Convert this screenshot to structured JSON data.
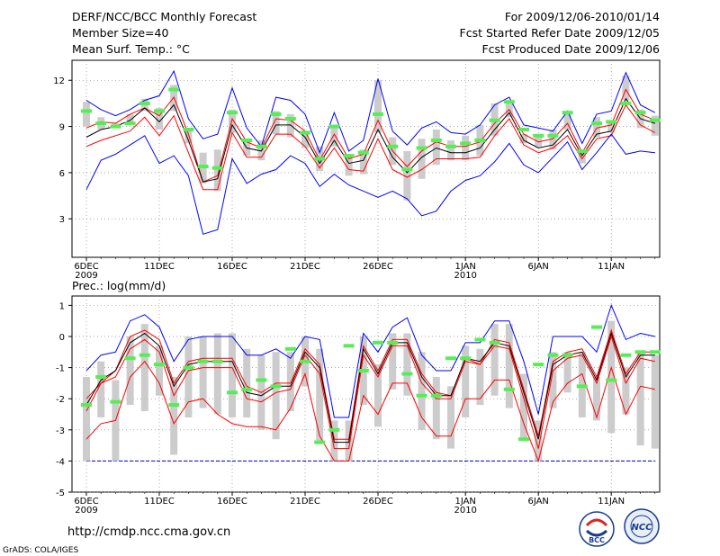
{
  "header": {
    "title": "DERF/NCC/BCC Monthly Forecast",
    "member_size": "Member Size=40",
    "variable": "Mean Surf. Temp.: °C",
    "period": "For 2009/12/06-2010/01/14",
    "start_date": "Fcst Started Refer Date 2009/12/05",
    "produced_date": "Fcst Produced Date 2009/12/06"
  },
  "footer": {
    "url": "http://cmdp.ncc.cma.gov.cn",
    "credit": "GrADS: COLA/IGES",
    "logo_left_text": "BCC",
    "logo_right_text": "NCC"
  },
  "colors": {
    "box": "#cccccc",
    "mean": "#000000",
    "ensemble_high": "#0000ff",
    "ensemble_low_band": "#ff0000",
    "climo": "#55ee55",
    "threshold": "#0000cc"
  },
  "chart_data": [
    {
      "type": "line",
      "title": "Mean Surf. Temp.: °C",
      "x_tick_labels": [
        "6DEC",
        "11DEC",
        "16DEC",
        "21DEC",
        "26DEC",
        "1JAN",
        "6JAN",
        "11JAN"
      ],
      "x_tick_days": [
        1,
        6,
        11,
        16,
        21,
        27,
        32,
        37
      ],
      "x_year_labels": [
        {
          "day": 1,
          "label": "2009"
        },
        {
          "day": 27,
          "label": "2010"
        }
      ],
      "ylim": [
        0.5,
        13.3
      ],
      "y_ticks": [
        3,
        6,
        9,
        12
      ],
      "days": [
        1,
        2,
        3,
        4,
        5,
        6,
        7,
        8,
        9,
        10,
        11,
        12,
        13,
        14,
        15,
        16,
        17,
        18,
        19,
        20,
        21,
        22,
        23,
        24,
        25,
        26,
        27,
        28,
        29,
        30,
        31,
        32,
        33,
        34,
        35,
        36,
        37,
        38,
        39,
        40
      ],
      "series": [
        {
          "name": "ensemble max",
          "color": "#0000ff",
          "values": [
            10.7,
            10.1,
            9.7,
            10.1,
            10.7,
            11,
            12.6,
            9.5,
            8.2,
            8.5,
            11.5,
            8.9,
            7.7,
            10.9,
            10.7,
            9.8,
            7.3,
            9.9,
            7.4,
            8.1,
            12.1,
            8.7,
            7.8,
            8.9,
            9.3,
            8.6,
            8.5,
            9.1,
            10.4,
            10.9,
            9.1,
            8.9,
            8.7,
            10,
            7.9,
            9.8,
            10,
            12.5,
            10.4,
            9.9
          ]
        },
        {
          "name": "upper band",
          "color": "#ff0000",
          "values": [
            8.9,
            9.3,
            9.2,
            9.8,
            10.2,
            9.7,
            10.9,
            8.5,
            5.4,
            5.8,
            9.5,
            8,
            7.6,
            9.5,
            9.4,
            8.7,
            6.8,
            8.5,
            6.9,
            7.2,
            9.4,
            7.4,
            6.4,
            7.4,
            8,
            7.7,
            7.7,
            8,
            9.2,
            10.1,
            8.5,
            8,
            8.2,
            9.2,
            7.3,
            8.9,
            9.1,
            11.4,
            9.8,
            9.4
          ]
        },
        {
          "name": "ensemble mean",
          "color": "#000000",
          "values": [
            8.3,
            8.8,
            9,
            9.4,
            10.2,
            9.3,
            10.4,
            8.1,
            5.4,
            5.6,
            9.1,
            7.6,
            7.4,
            9.1,
            9.1,
            8.3,
            6.6,
            8.1,
            6.6,
            6.8,
            8.8,
            7,
            6,
            7,
            7.6,
            7.3,
            7.3,
            7.6,
            8.8,
            9.9,
            8.1,
            7.6,
            7.8,
            8.8,
            7.1,
            8.5,
            8.7,
            10.8,
            9.5,
            9.2
          ]
        },
        {
          "name": "lower band",
          "color": "#ff0000",
          "values": [
            7.7,
            8.1,
            8.4,
            8.7,
            9.6,
            8.4,
            9.7,
            7.3,
            4.9,
            4.9,
            8.6,
            7,
            7,
            8.5,
            8.5,
            7.7,
            6.3,
            7.6,
            6.2,
            6.1,
            8.2,
            6.2,
            5.7,
            6.2,
            6.9,
            6.9,
            6.9,
            7,
            8.4,
            9.5,
            7.8,
            7.3,
            7.6,
            8.4,
            6.9,
            8.2,
            8.4,
            10.4,
            9.1,
            8.6
          ]
        },
        {
          "name": "ensemble min",
          "color": "#0000ff",
          "values": [
            4.9,
            6.8,
            7.2,
            7.8,
            8.4,
            6.6,
            7.1,
            5.8,
            2,
            2.3,
            6.9,
            5.3,
            5.9,
            6.2,
            7.1,
            6.6,
            5.1,
            5.9,
            5.2,
            4.8,
            4.4,
            4.8,
            4.3,
            3.2,
            3.5,
            4.8,
            5.5,
            5.8,
            6.7,
            7.9,
            6.5,
            6,
            7,
            8,
            6.2,
            7.3,
            8.5,
            7.2,
            7.4,
            7.3
          ]
        }
      ],
      "boxes": {
        "low": [
          9,
          8.8,
          9,
          9.2,
          10,
          8.8,
          10,
          7.9,
          5.3,
          4.8,
          8.6,
          7.1,
          6.8,
          8.5,
          8.3,
          7.6,
          6.1,
          7.7,
          5.8,
          5.9,
          8.6,
          6.5,
          4.2,
          5.6,
          6.5,
          6.8,
          6.8,
          7.1,
          8.4,
          9.6,
          7.9,
          7.7,
          7.5,
          8.8,
          6.6,
          8.3,
          8.6,
          10.7,
          8.9,
          8.4
        ],
        "high": [
          10.6,
          9.6,
          9.2,
          9.8,
          10.8,
          10.2,
          11.7,
          8.9,
          7.3,
          7.5,
          10.1,
          8.1,
          8.1,
          10,
          9.8,
          8.7,
          7.7,
          9.1,
          7.1,
          7.5,
          12,
          8.3,
          7.4,
          8.2,
          8.8,
          8.1,
          8.4,
          9.1,
          10.5,
          10.7,
          8.5,
          8.4,
          8.8,
          10,
          7.4,
          9.6,
          9.4,
          12.3,
          10.1,
          9.7
        ]
      },
      "climatology": [
        10,
        9.2,
        9,
        9.2,
        10.5,
        10,
        11.4,
        8.8,
        6.4,
        6.3,
        9.9,
        8.1,
        7.7,
        9.8,
        9.5,
        8.6,
        6.9,
        9,
        7.1,
        7.3,
        9.8,
        7.7,
        6.2,
        7.6,
        8.1,
        7.7,
        7.9,
        8.1,
        9.4,
        10.6,
        8.8,
        8.4,
        8.4,
        9.9,
        7.4,
        9.2,
        9.3,
        10.5,
        9.9,
        9.4
      ]
    },
    {
      "type": "line",
      "title": "Prec.: log(mm/d)",
      "x_tick_labels": [
        "6DEC",
        "11DEC",
        "16DEC",
        "21DEC",
        "26DEC",
        "1JAN",
        "6JAN",
        "11JAN"
      ],
      "x_tick_days": [
        1,
        6,
        11,
        16,
        21,
        27,
        32,
        37
      ],
      "x_year_labels": [
        {
          "day": 1,
          "label": "2009"
        },
        {
          "day": 27,
          "label": "2010"
        }
      ],
      "ylim": [
        -5,
        1.3
      ],
      "y_ticks": [
        -5,
        -4,
        -3,
        -2,
        -1,
        0,
        1
      ],
      "threshold": -4,
      "days": [
        1,
        2,
        3,
        4,
        5,
        6,
        7,
        8,
        9,
        10,
        11,
        12,
        13,
        14,
        15,
        16,
        17,
        18,
        19,
        20,
        21,
        22,
        23,
        24,
        25,
        26,
        27,
        28,
        29,
        30,
        31,
        32,
        33,
        34,
        35,
        36,
        37,
        38,
        39,
        40
      ],
      "series": [
        {
          "name": "ensemble max",
          "color": "#0000ff",
          "values": [
            -1.1,
            -0.6,
            -0.5,
            0.5,
            0.7,
            0.3,
            -0.8,
            -0.1,
            0,
            0,
            0,
            -0.6,
            -0.6,
            -0.4,
            -0.7,
            0,
            -0.1,
            -2.6,
            -2.6,
            0.1,
            -0.5,
            0.3,
            0.6,
            -0.6,
            -1.1,
            -1.1,
            -0.2,
            -0.2,
            0.5,
            0.5,
            -0.8,
            -2.5,
            0,
            0,
            0,
            -0.5,
            1,
            -0.1,
            0.1,
            0
          ]
        },
        {
          "name": "upper band",
          "color": "#ff0000",
          "values": [
            -2,
            -1.5,
            -1.1,
            0,
            0.2,
            -0.1,
            -1.5,
            -0.8,
            -0.7,
            -0.7,
            -0.7,
            -1.6,
            -1.8,
            -1.5,
            -1.5,
            -0.4,
            -0.9,
            -3.3,
            -3.3,
            -0.3,
            -1.1,
            -0.1,
            -0.1,
            -1.2,
            -1.8,
            -1.9,
            -0.7,
            -0.9,
            -0.1,
            -0.2,
            -1.7,
            -3.2,
            -0.8,
            -0.5,
            -0.4,
            -1.3,
            0.2,
            -1.2,
            -0.5,
            -0.5
          ]
        },
        {
          "name": "ensemble mean",
          "color": "#000000",
          "values": [
            -2.2,
            -1.4,
            -1.1,
            -0.2,
            0.1,
            -0.3,
            -1.6,
            -0.9,
            -0.8,
            -0.8,
            -0.8,
            -1.8,
            -1.9,
            -1.6,
            -1.6,
            -0.5,
            -1,
            -3.4,
            -3.4,
            -0.4,
            -1.2,
            -0.2,
            -0.2,
            -1.3,
            -1.9,
            -1.9,
            -0.7,
            -0.8,
            -0.2,
            -0.3,
            -1.8,
            -3.3,
            -0.9,
            -0.6,
            -0.5,
            -1.4,
            0.1,
            -1.3,
            -0.6,
            -0.6
          ]
        },
        {
          "name": "lower band",
          "color": "#ff0000",
          "values": [
            -2.4,
            -1.5,
            -1.3,
            -0.4,
            -0.1,
            -0.5,
            -1.9,
            -1.1,
            -1,
            -1,
            -1,
            -2,
            -2.1,
            -1.8,
            -1.7,
            -0.6,
            -1.2,
            -3.6,
            -3.6,
            -0.6,
            -1.3,
            -0.3,
            -0.3,
            -1.5,
            -2,
            -2,
            -0.8,
            -0.9,
            -0.3,
            -0.4,
            -2,
            -3.6,
            -1.1,
            -0.7,
            -0.6,
            -1.5,
            0,
            -1.5,
            -0.7,
            -0.8
          ]
        },
        {
          "name": "ensemble min",
          "color": "#ff0000",
          "values": [
            -3.3,
            -2.8,
            -2.7,
            -1.3,
            -0.8,
            -1.5,
            -2.8,
            -2.1,
            -2,
            -2.5,
            -2.8,
            -2.9,
            -2.9,
            -3,
            -2.3,
            -1.2,
            -3.2,
            -4,
            -4,
            -1.9,
            -2.5,
            -1.5,
            -1.5,
            -2.6,
            -3.2,
            -3.2,
            -2,
            -2,
            -1.4,
            -1.4,
            -2.8,
            -4,
            -2.1,
            -1.5,
            -1.2,
            -2.6,
            -1,
            -2.5,
            -1.6,
            -1.7
          ]
        }
      ],
      "boxes": {
        "low": [
          -4,
          -2.6,
          -4,
          -2.2,
          -2.4,
          -1.9,
          -3.8,
          -2.6,
          -2.3,
          -2.5,
          -2.6,
          -2.6,
          -3,
          -3.3,
          -2.4,
          -1.6,
          -3.4,
          -4,
          -4,
          -2.2,
          -2.9,
          -1.7,
          -1.9,
          -3,
          -3.3,
          -3.6,
          -2.6,
          -2.2,
          -1.9,
          -2.3,
          -3.3,
          -4,
          -2.3,
          -1.8,
          -2.6,
          -2.7,
          -3.1,
          -2.5,
          -3.5,
          -3.6
        ],
        "high": [
          -1.3,
          -0.8,
          -1.4,
          0,
          0.4,
          -0.3,
          -1.3,
          0,
          0,
          0.1,
          0.1,
          -0.4,
          -0.6,
          -0.5,
          -0.5,
          0,
          -0.4,
          -2.7,
          -2.7,
          0,
          -0.9,
          0.1,
          0.1,
          -0.5,
          -1.3,
          -1.6,
          -0.3,
          -0.4,
          0.4,
          0.4,
          -1.2,
          -2.7,
          -0.5,
          -0.5,
          -0.5,
          -1.3,
          0.5,
          -1,
          -0.5,
          -0.6
        ]
      },
      "climatology": [
        -2.2,
        -1.3,
        -2.1,
        -0.7,
        -0.6,
        -0.9,
        -2.2,
        -1,
        -0.8,
        -0.8,
        -1.8,
        -1.7,
        -1.4,
        -1.6,
        -0.4,
        -0.8,
        -3.4,
        -3,
        -0.3,
        -1.1,
        -0.2,
        -0.2,
        -1.2,
        -1.9,
        -1.9,
        -0.7,
        -0.7,
        -0.1,
        -0.2,
        -1.7,
        -3.3,
        -0.9,
        -0.6,
        -0.6,
        -1.6,
        0.3,
        -1.4,
        -0.6,
        -0.5,
        -0.5
      ]
    }
  ]
}
